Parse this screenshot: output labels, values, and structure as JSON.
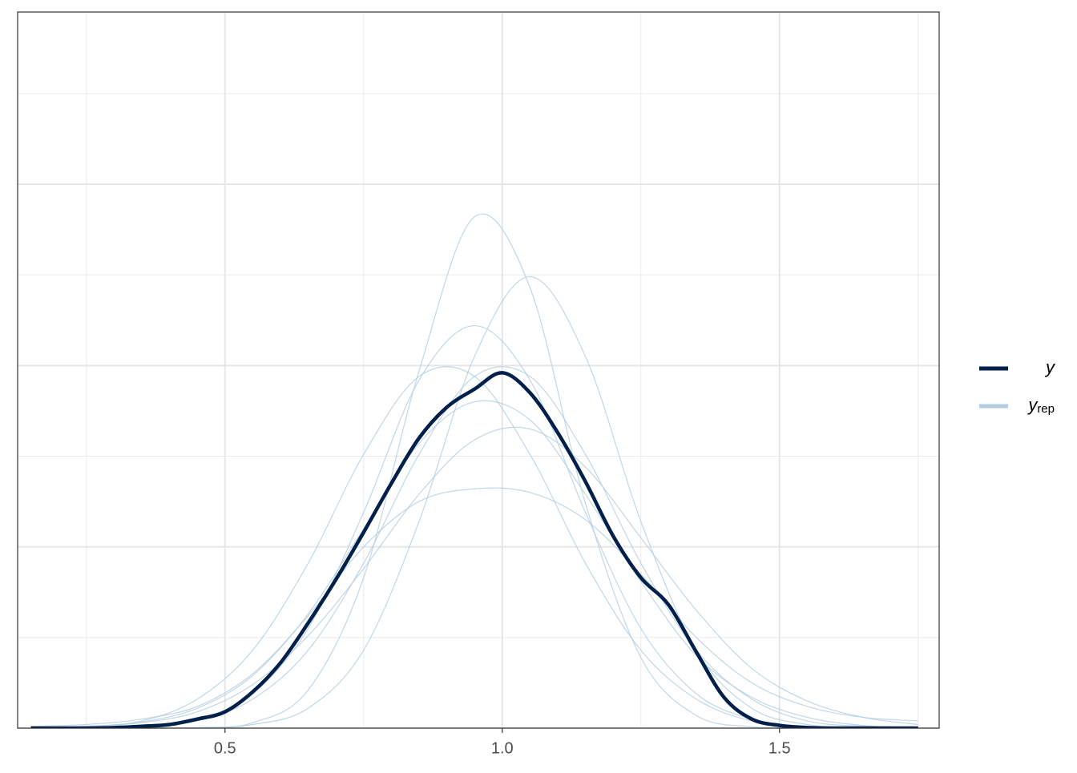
{
  "chart_data": {
    "type": "density_overlay",
    "xlim": [
      0.126,
      1.788
    ],
    "xticks": [
      0.5,
      {
        "value": 1,
        "label": "1.0"
      },
      1.5
    ],
    "xminor": [
      0.25,
      0.75,
      1.25,
      1.75
    ],
    "ylim": [
      0,
      3.95
    ],
    "yticks": [
      0,
      1,
      2,
      3
    ],
    "yminor": [
      0.5,
      1.5,
      2.5,
      3.5
    ],
    "show_ytick_labels": false,
    "grid": true,
    "legend": "right",
    "series": [
      {
        "name": "y",
        "color": "#011f4b",
        "x": [
          0.15,
          0.2,
          0.25,
          0.3,
          0.35,
          0.4,
          0.45,
          0.5,
          0.55,
          0.6,
          0.65,
          0.7,
          0.75,
          0.8,
          0.85,
          0.9,
          0.95,
          1.0,
          1.05,
          1.1,
          1.15,
          1.2,
          1.25,
          1.3,
          1.35,
          1.4,
          1.45,
          1.5,
          1.55,
          1.6,
          1.65,
          1.7,
          1.75
        ],
        "values": [
          0,
          0,
          0,
          0.003,
          0.01,
          0.02,
          0.05,
          0.09,
          0.2,
          0.36,
          0.58,
          0.82,
          1.08,
          1.35,
          1.6,
          1.77,
          1.87,
          1.96,
          1.85,
          1.63,
          1.36,
          1.06,
          0.83,
          0.68,
          0.42,
          0.17,
          0.05,
          0.015,
          0.003,
          0,
          0,
          0,
          0
        ]
      }
    ],
    "replicates": {
      "name": "yrep",
      "color": "#b3cde0",
      "x": [
        0.15,
        0.25,
        0.35,
        0.45,
        0.55,
        0.65,
        0.75,
        0.85,
        0.95,
        1.05,
        1.15,
        1.25,
        1.35,
        1.45,
        1.55,
        1.65,
        1.75
      ],
      "values": [
        [
          0,
          0.001,
          0.01,
          0.04,
          0.16,
          0.43,
          0.91,
          1.51,
          1.94,
          1.94,
          1.51,
          0.91,
          0.43,
          0.16,
          0.04,
          0.01,
          0.001
        ],
        [
          0,
          0,
          0.01,
          0.05,
          0.19,
          0.55,
          1.19,
          1.92,
          2.22,
          1.92,
          1.19,
          0.55,
          0.19,
          0.05,
          0.01,
          0,
          0
        ],
        [
          0.003,
          0.01,
          0.03,
          0.09,
          0.24,
          0.51,
          0.88,
          1.29,
          1.59,
          1.65,
          1.44,
          1.05,
          0.65,
          0.33,
          0.15,
          0.06,
          0.02
        ],
        [
          0.001,
          0.01,
          0.04,
          0.16,
          0.43,
          0.91,
          1.51,
          1.94,
          1.94,
          1.51,
          0.91,
          0.43,
          0.16,
          0.04,
          0.01,
          0.001,
          0
        ],
        [
          0,
          0,
          0,
          0.003,
          0.02,
          0.11,
          0.43,
          1.14,
          2.05,
          2.49,
          2.05,
          1.14,
          0.43,
          0.11,
          0.02,
          0.003,
          0
        ],
        [
          0.001,
          0.008,
          0.034,
          0.11,
          0.29,
          0.63,
          1.1,
          1.57,
          1.8,
          1.7,
          1.29,
          0.81,
          0.4,
          0.17,
          0.06,
          0.015,
          0.003
        ],
        [
          0.01,
          0.02,
          0.05,
          0.12,
          0.3,
          0.62,
          1.0,
          1.25,
          1.32,
          1.3,
          1.15,
          0.85,
          0.5,
          0.25,
          0.12,
          0.06,
          0.04
        ],
        [
          0,
          0,
          0,
          0,
          0.03,
          0.21,
          0.83,
          1.97,
          2.82,
          2.43,
          1.24,
          0.39,
          0.07,
          0.008,
          0,
          0,
          0
        ]
      ]
    }
  }
}
